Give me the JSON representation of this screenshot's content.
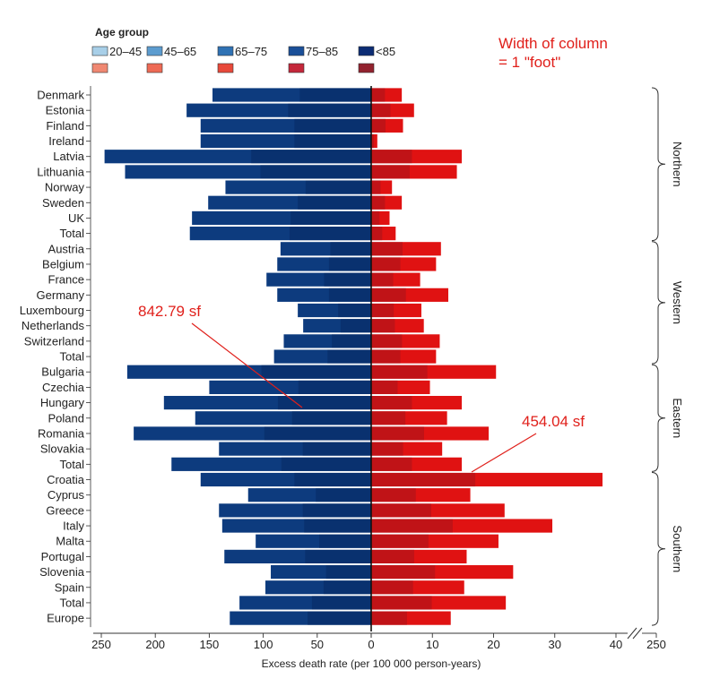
{
  "chart_data": {
    "type": "bar",
    "subtype": "diverging-stacked-horizontal",
    "xlabel": "Excess death rate (per 100 000 person-years)",
    "left_axis": {
      "ticks": [
        250,
        200,
        150,
        100,
        50,
        0
      ],
      "range": [
        0,
        250
      ]
    },
    "right_axis": {
      "ticks": [
        0,
        10,
        20,
        30,
        40
      ],
      "break_tick": 250,
      "range": [
        0,
        40
      ]
    },
    "legend": {
      "title": "Age group",
      "groups": [
        "20–45",
        "45–65",
        "65–75",
        "75–85",
        "<85"
      ],
      "blue_colors": [
        "#a8cfe8",
        "#5c9ccf",
        "#2f72b4",
        "#1a4f98",
        "#0c2c74"
      ],
      "red_colors": [
        "#f08872",
        "#ee6a55",
        "#e8493a",
        "#c4273a",
        "#92222e"
      ]
    },
    "categories": [
      "Denmark",
      "Estonia",
      "Finland",
      "Ireland",
      "Latvia",
      "Lithuania",
      "Norway",
      "Sweden",
      "UK",
      "Total",
      "Austria",
      "Belgium",
      "France",
      "Germany",
      "Luxembourg",
      "Netherlands",
      "Switzerland",
      "Total",
      "Bulgaria",
      "Czechia",
      "Hungary",
      "Poland",
      "Romania",
      "Slovakia",
      "Total",
      "Croatia",
      "Cyprus",
      "Greece",
      "Italy",
      "Malta",
      "Portugal",
      "Slovenia",
      "Spain",
      "Total",
      "Europe"
    ],
    "left_values": [
      147,
      171,
      158,
      158,
      247,
      228,
      135,
      151,
      166,
      168,
      84,
      87,
      97,
      87,
      68,
      63,
      81,
      90,
      226,
      150,
      192,
      163,
      220,
      141,
      185,
      158,
      114,
      141,
      138,
      107,
      136,
      93,
      98,
      122,
      131
    ],
    "right_values": [
      5.0,
      7.0,
      5.2,
      1.0,
      14.8,
      14.0,
      3.4,
      5.0,
      3.0,
      4.0,
      11.4,
      10.6,
      8.0,
      12.6,
      8.2,
      8.6,
      11.2,
      10.6,
      20.4,
      9.6,
      14.8,
      12.4,
      19.2,
      11.6,
      14.8,
      37.8,
      16.2,
      21.8,
      29.6,
      20.8,
      15.6,
      23.2,
      15.2,
      22.0,
      13.0
    ],
    "regions": [
      {
        "name": "Northern",
        "start": 0,
        "end": 9
      },
      {
        "name": "Western",
        "start": 10,
        "end": 17
      },
      {
        "name": "Eastern",
        "start": 18,
        "end": 24
      },
      {
        "name": "Southern",
        "start": 25,
        "end": 34
      }
    ],
    "annotations": {
      "column_note_line1": "Width of column",
      "column_note_line2": "= 1 \"foot\"",
      "left_area": "842.79 sf",
      "right_area": "454.04 sf"
    },
    "colors": {
      "left_bar": "#0d3b7e",
      "right_bar": "#e01212",
      "annotation": "#e0201b",
      "zero_line": "#111111"
    }
  }
}
